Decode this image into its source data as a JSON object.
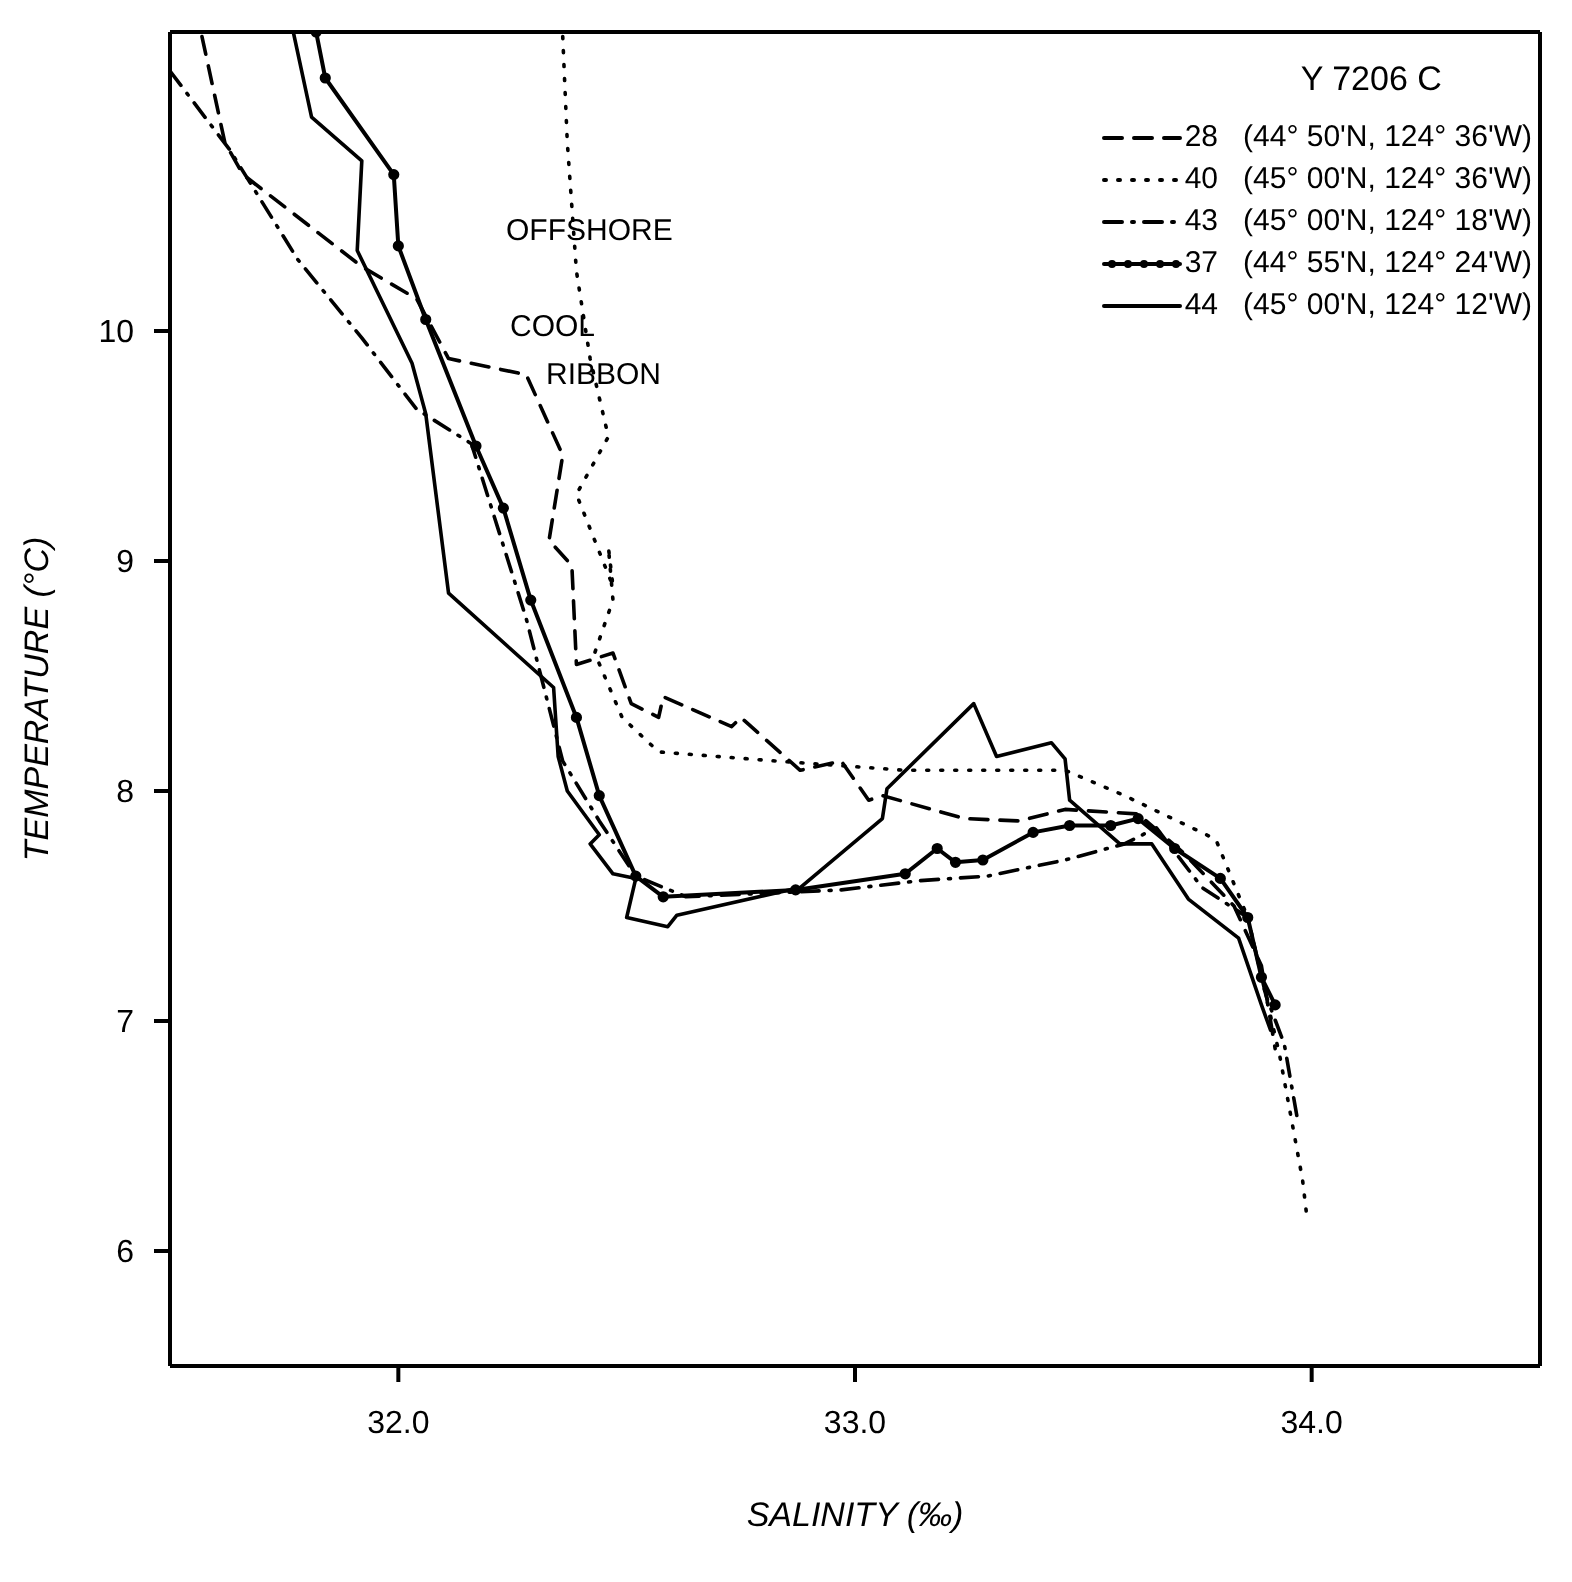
{
  "chart_data": {
    "type": "line",
    "xlabel": "SALINITY   (‰)",
    "ylabel": "TEMPERATURE   (°C)",
    "legend_title": "Y 7206 C",
    "legend": "top right",
    "xlim": [
      31.5,
      34.5
    ],
    "xticks": [
      {
        "value": 32,
        "label": "32.0"
      },
      {
        "value": 33,
        "label": "33.0"
      },
      {
        "value": 34,
        "label": "34.0"
      }
    ],
    "ylim": [
      5.5,
      11.3
    ],
    "yticks": [
      6,
      7,
      8,
      9,
      10
    ],
    "annotations": [
      "OFFSHORE",
      "COOL RIBBON"
    ],
    "series": [
      {
        "name": "28   (44° 50'N, 124° 36'W)",
        "color": "#000000",
        "line_style": "dashed",
        "x": [
          31.57,
          31.62,
          31.66,
          31.92,
          32.04,
          32.11,
          32.28,
          32.36,
          32.33,
          32.38,
          32.39,
          32.47,
          32.51,
          32.57,
          32.58,
          32.73,
          32.75,
          32.88,
          32.97,
          33.03,
          33.06,
          33.24,
          33.36,
          33.46,
          33.62,
          33.72,
          33.83,
          33.89,
          33.92
        ],
        "values": [
          11.28,
          10.82,
          10.68,
          10.28,
          10.14,
          9.88,
          9.81,
          9.46,
          9.09,
          8.98,
          8.55,
          8.6,
          8.38,
          8.32,
          8.41,
          8.28,
          8.32,
          8.09,
          8.13,
          7.96,
          7.98,
          7.88,
          7.87,
          7.92,
          7.9,
          7.73,
          7.5,
          7.24,
          6.88
        ]
      },
      {
        "name": "40   (45° 00'N, 124° 36'W)",
        "color": "#000000",
        "line_style": "dotted",
        "x": [
          32.36,
          32.37,
          32.39,
          32.42,
          32.46,
          32.39,
          32.47,
          32.46,
          32.47,
          32.43,
          32.49,
          32.57,
          32.83,
          33.11,
          33.46,
          33.59,
          33.79,
          33.86,
          33.93,
          33.98,
          33.99
        ],
        "values": [
          11.28,
          10.82,
          10.26,
          9.88,
          9.54,
          9.29,
          8.89,
          9.06,
          8.83,
          8.6,
          8.32,
          8.17,
          8.13,
          8.09,
          8.09,
          7.98,
          7.79,
          7.45,
          6.85,
          6.31,
          6.14
        ]
      },
      {
        "name": "43   (45° 00'N, 124° 18'W)",
        "color": "#000000",
        "line_style": "dashdot",
        "x": [
          31.5,
          31.63,
          31.78,
          31.92,
          32.04,
          32.16,
          32.28,
          32.36,
          32.44,
          32.52,
          32.63,
          32.97,
          33.14,
          33.29,
          33.46,
          33.59,
          33.66,
          33.76,
          33.86,
          33.9,
          33.94,
          33.97
        ],
        "values": [
          11.13,
          10.79,
          10.31,
          9.97,
          9.66,
          9.51,
          8.75,
          8.13,
          7.87,
          7.63,
          7.54,
          7.57,
          7.61,
          7.63,
          7.7,
          7.77,
          7.84,
          7.58,
          7.45,
          7.11,
          6.9,
          6.56
        ]
      },
      {
        "name": "37   (44° 55'N, 124° 24'W)",
        "color": "#000000",
        "line_style": "solid",
        "marker": "circle",
        "x": [
          31.82,
          31.84,
          31.99,
          32.0,
          32.06,
          32.17,
          32.23,
          32.29,
          32.39,
          32.44,
          32.52,
          32.58,
          32.87,
          33.11,
          33.18,
          33.22,
          33.28,
          33.39,
          33.47,
          33.56,
          33.62,
          33.7,
          33.8,
          33.86,
          33.89,
          33.92
        ],
        "values": [
          11.3,
          11.1,
          10.68,
          10.37,
          10.05,
          9.5,
          9.23,
          8.83,
          8.32,
          7.98,
          7.63,
          7.54,
          7.57,
          7.64,
          7.75,
          7.69,
          7.7,
          7.82,
          7.85,
          7.85,
          7.88,
          7.75,
          7.62,
          7.45,
          7.19,
          7.07
        ]
      },
      {
        "name": "44   (45° 00'N, 124° 12'W)",
        "color": "#000000",
        "line_style": "solid",
        "x": [
          31.77,
          31.81,
          31.92,
          31.91,
          32.03,
          32.06,
          32.11,
          32.34,
          32.35,
          32.37,
          32.44,
          32.42,
          32.47,
          32.52,
          32.5,
          32.59,
          32.61,
          32.88,
          33.06,
          33.07,
          33.26,
          33.31,
          33.43,
          33.46,
          33.47,
          33.58,
          33.65,
          33.73,
          33.84,
          33.89,
          33.91
        ],
        "values": [
          11.3,
          10.93,
          10.74,
          10.35,
          9.86,
          9.64,
          8.86,
          8.45,
          8.15,
          8.0,
          7.81,
          7.77,
          7.64,
          7.62,
          7.45,
          7.41,
          7.46,
          7.58,
          7.88,
          8.01,
          8.38,
          8.15,
          8.21,
          8.14,
          7.96,
          7.77,
          7.77,
          7.53,
          7.36,
          7.07,
          6.96
        ]
      }
    ]
  }
}
